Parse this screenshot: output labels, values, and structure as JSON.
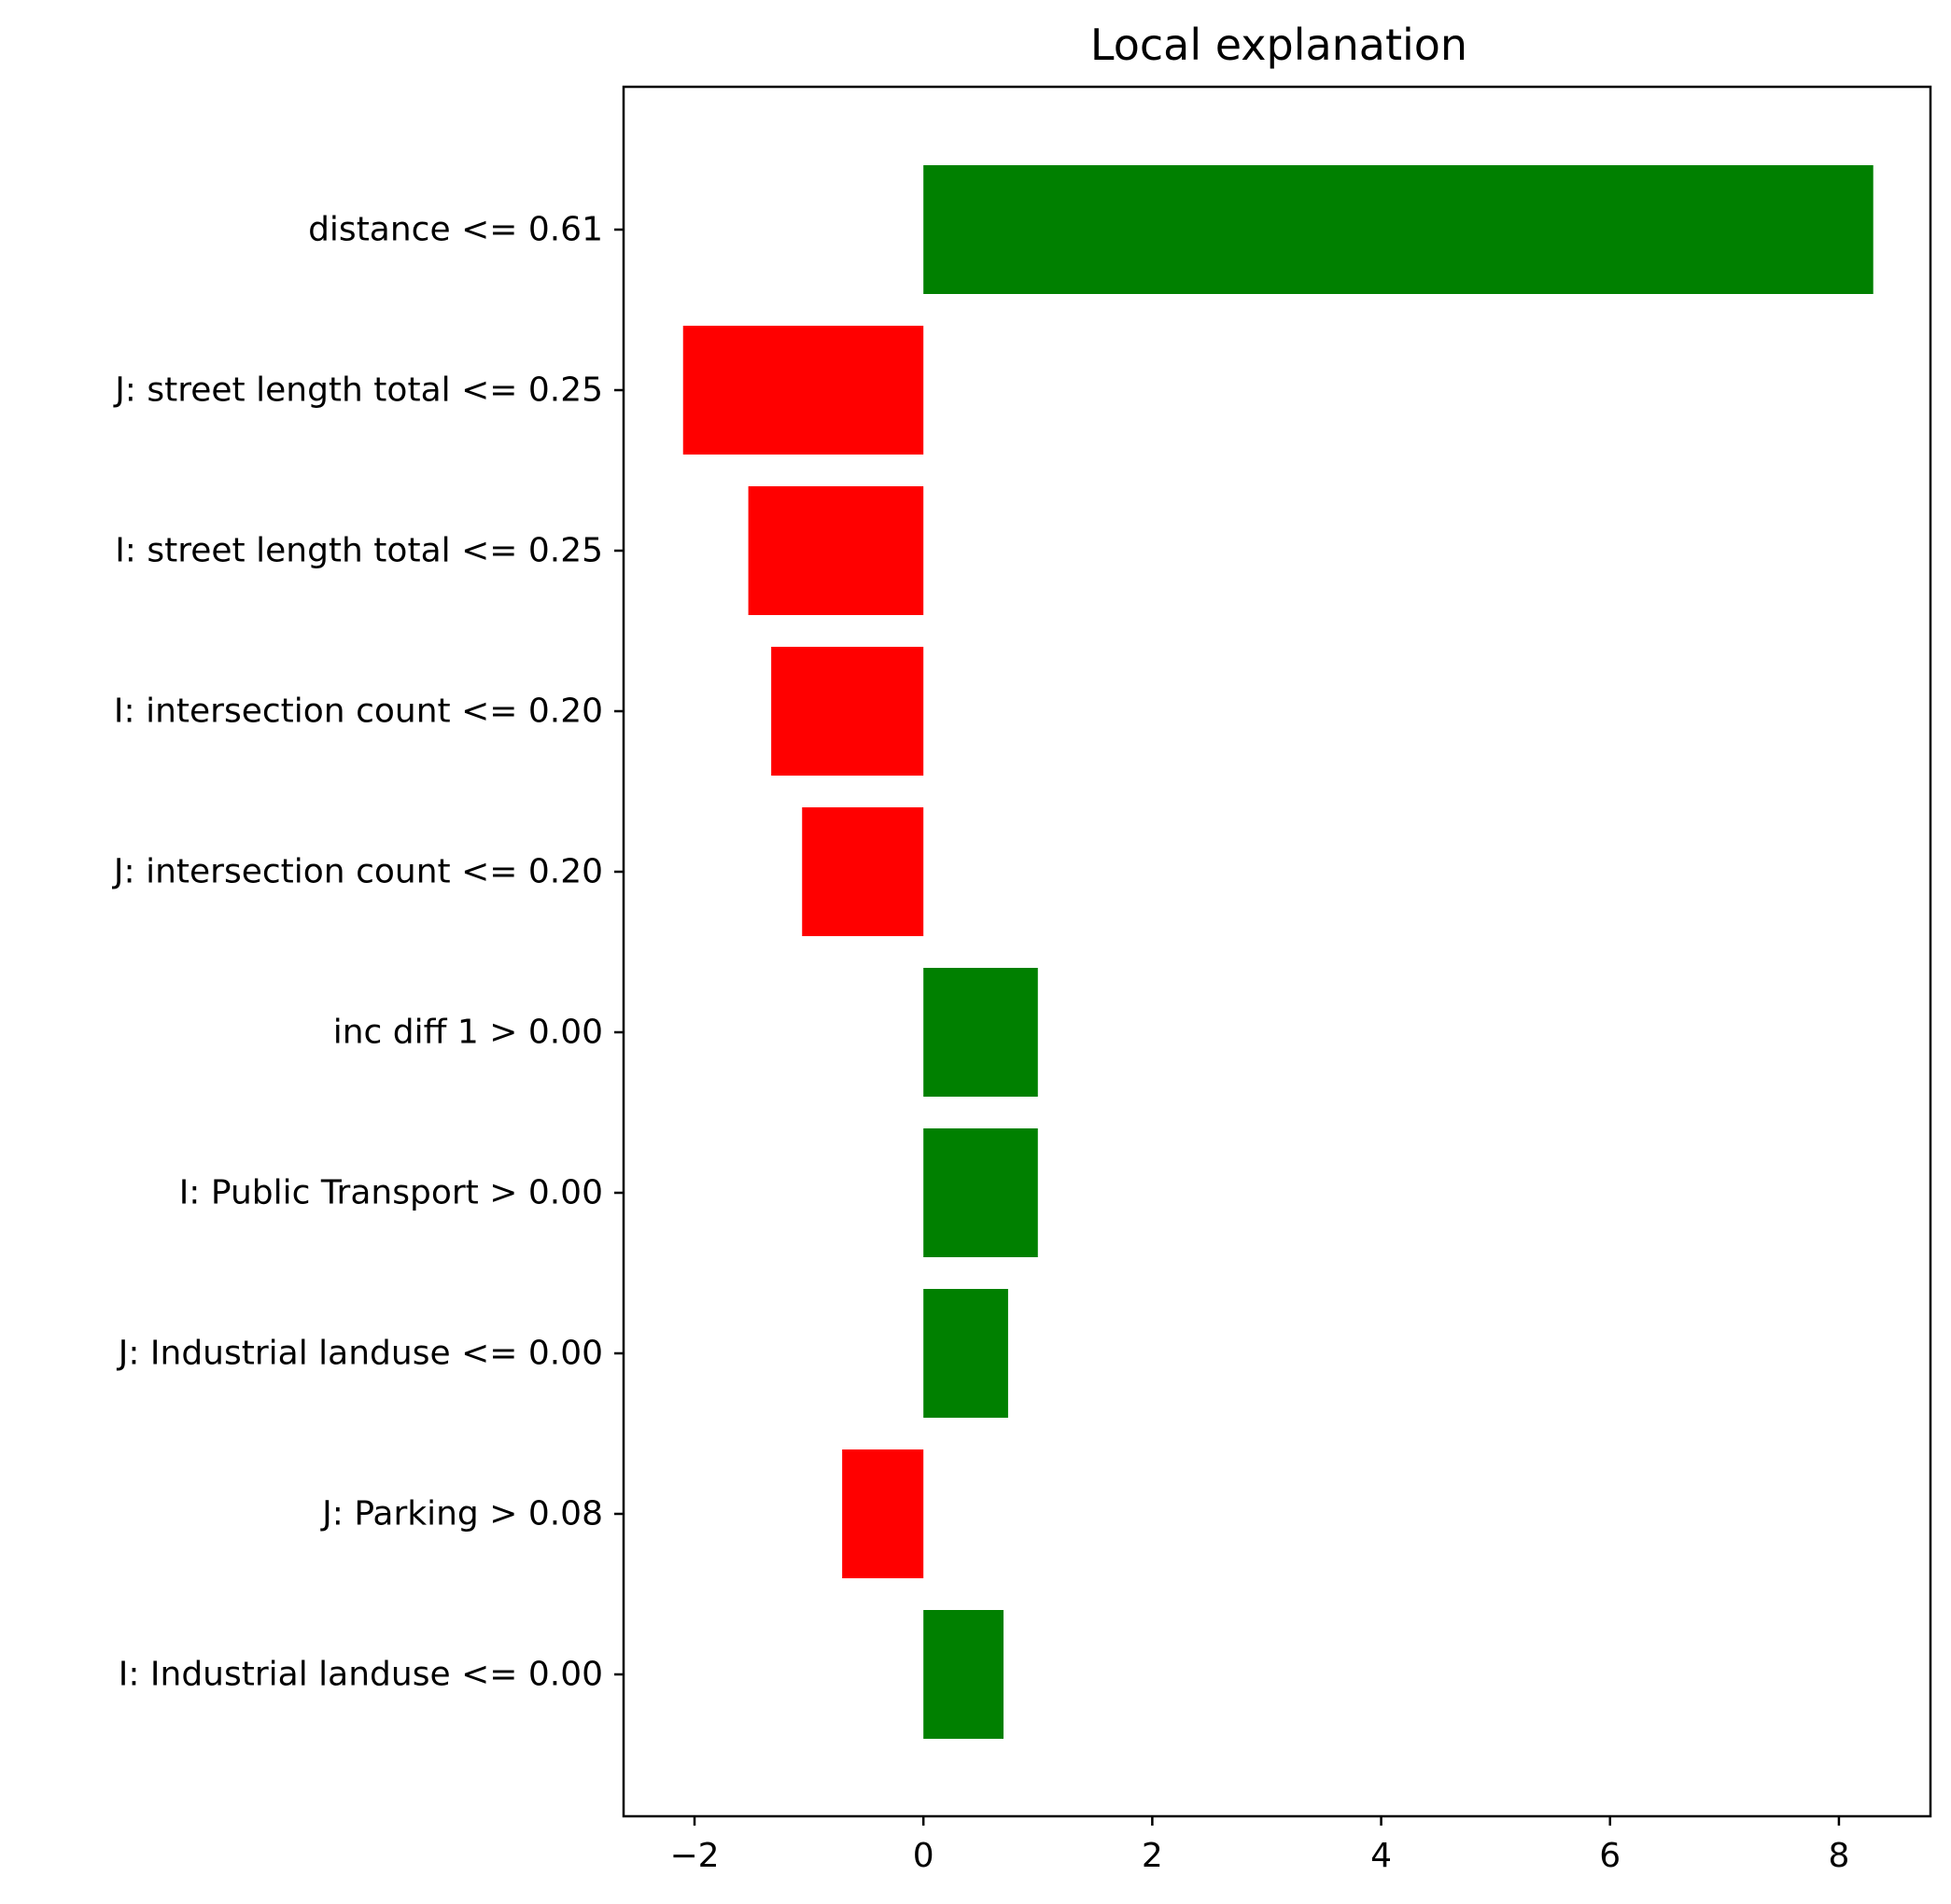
{
  "chart_data": {
    "type": "bar",
    "orientation": "horizontal",
    "title": "Local explanation",
    "xlabel": "",
    "ylabel": "",
    "xlim": [
      -2.62,
      8.8
    ],
    "xticks": [
      -2,
      0,
      2,
      4,
      6,
      8
    ],
    "xtick_labels": [
      "−2",
      "0",
      "2",
      "4",
      "6",
      "8"
    ],
    "grid": false,
    "categories": [
      "distance <= 0.61",
      "J: street length total <= 0.25",
      "I: street length total <= 0.25",
      "I: intersection count <= 0.20",
      "J: intersection count <= 0.20",
      "inc diff 1 > 0.00",
      "I: Public Transport > 0.00",
      "J: Industrial landuse <= 0.00",
      "J: Parking > 0.08",
      "I: Industrial landuse <= 0.00"
    ],
    "values": [
      8.3,
      -2.1,
      -1.53,
      -1.33,
      -1.06,
      1.0,
      1.0,
      0.74,
      -0.71,
      0.7
    ],
    "colors": {
      "positive": "#008000",
      "negative": "#ff0000"
    }
  }
}
